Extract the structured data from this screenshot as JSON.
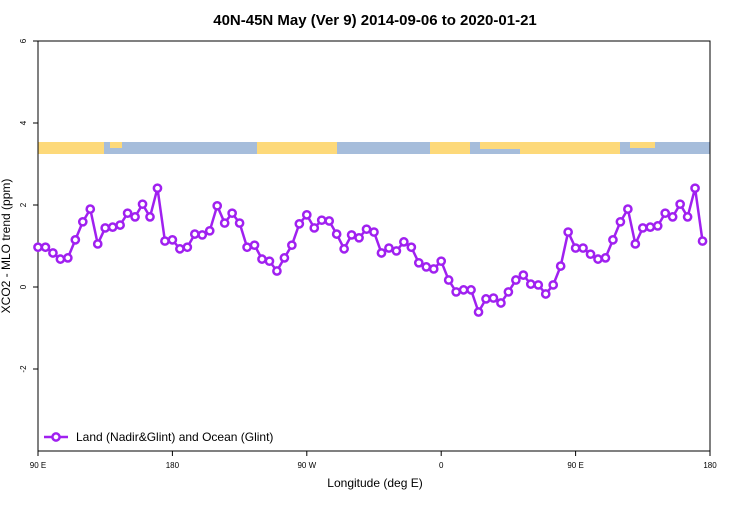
{
  "chart_data": {
    "type": "line",
    "title": "40N-45N May (Ver 9)   2014-09-06 to 2020-01-21",
    "xlabel": "Longitude (deg E)",
    "ylabel": "XCO2 - MLO trend (ppm)",
    "x": [
      90,
      95,
      100,
      105,
      110,
      115,
      120,
      125,
      130,
      135,
      140,
      145,
      150,
      155,
      160,
      165,
      170,
      175,
      180,
      185,
      190,
      195,
      200,
      205,
      210,
      215,
      220,
      225,
      230,
      235,
      240,
      245,
      250,
      255,
      260,
      265,
      270,
      275,
      280,
      285,
      290,
      295,
      300,
      305,
      310,
      315,
      320,
      325,
      330,
      335,
      340,
      345,
      350,
      355,
      360,
      365,
      370,
      375,
      380,
      385,
      390,
      395,
      400,
      405,
      410,
      415,
      420,
      425,
      430,
      435,
      440,
      445,
      450,
      455,
      460,
      465,
      470,
      475,
      480,
      485,
      490,
      495,
      500,
      505,
      510,
      515,
      520,
      525,
      530,
      535
    ],
    "series": [
      {
        "name": "Land (Nadir&Glint) and Ocean (Glint)",
        "color": "#a020f0",
        "values": [
          0.97,
          0.97,
          0.83,
          0.68,
          0.71,
          1.15,
          1.59,
          1.9,
          1.05,
          1.44,
          1.46,
          1.51,
          1.8,
          1.71,
          2.02,
          1.71,
          2.41,
          1.12,
          1.15,
          0.93,
          0.97,
          1.29,
          1.27,
          1.37,
          1.98,
          1.56,
          1.8,
          1.56,
          0.97,
          1.02,
          0.68,
          0.63,
          0.39,
          0.71,
          1.02,
          1.54,
          1.76,
          1.44,
          1.63,
          1.61,
          1.29,
          0.93,
          1.27,
          1.2,
          1.41,
          1.34,
          0.83,
          0.95,
          0.88,
          1.1,
          0.97,
          0.59,
          0.49,
          0.44,
          0.63,
          0.17,
          -0.12,
          -0.07,
          -0.07,
          -0.61,
          -0.29,
          -0.27,
          -0.39,
          -0.12,
          0.17,
          0.29,
          0.07,
          0.05,
          -0.17,
          0.05,
          0.51,
          1.34,
          0.95,
          0.95,
          0.8,
          0.68,
          0.71,
          1.15,
          1.59,
          1.9,
          1.05,
          1.44,
          1.46,
          1.49,
          1.8,
          1.71,
          2.02,
          1.71,
          2.41,
          1.12
        ]
      }
    ],
    "xlim": [
      90,
      540
    ],
    "xticks": [
      {
        "value": 90,
        "label": "90 E"
      },
      180,
      {
        "value": 270,
        "label": "90 W"
      },
      {
        "value": 360,
        "label": "0"
      },
      {
        "value": 450,
        "label": "90 E"
      },
      {
        "value": 540,
        "label": "180"
      }
    ],
    "ylim": [
      -4,
      6
    ],
    "yticks": [
      -2,
      0,
      2,
      4,
      6
    ],
    "legend": "bottom-left"
  }
}
